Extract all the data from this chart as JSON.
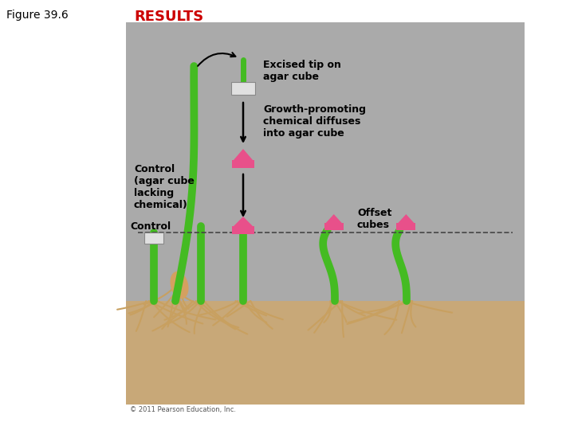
{
  "figure_label": "Figure 39.6",
  "title": "RESULTS",
  "title_color": "#cc0000",
  "title_fontsize": 13,
  "figure_label_fontsize": 10,
  "bg_color": "#aaaaaa",
  "soil_color": "#c8a878",
  "white_bg": "#ffffff",
  "annotations": {
    "excised_tip": "Excised tip on\nagar cube",
    "growth_promoting": "Growth-promoting\nchemical diffuses\ninto agar cube",
    "control_agar": "Control\n(agar cube\nlacking\nchemical)",
    "control": "Control",
    "offset_cubes": "Offset\ncubes"
  },
  "annotation_fontsize": 9,
  "pink_color": "#e8508a",
  "pink_dark": "#cc3370",
  "white_cube_color": "#e0e0e0",
  "green_color": "#44bb22",
  "root_color": "#c8a060",
  "dashed_line_color": "#444444",
  "copyright": "© 2011 Pearson Education, Inc."
}
